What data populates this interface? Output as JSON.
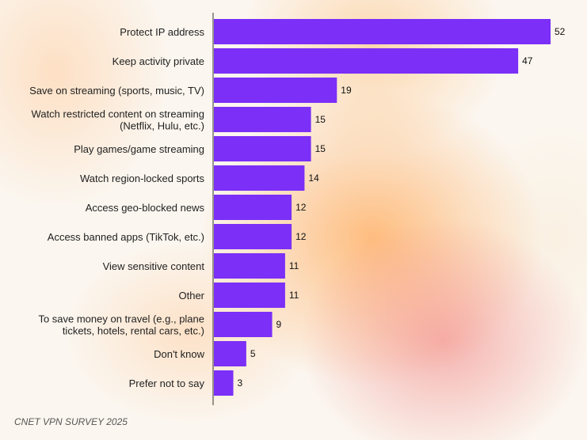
{
  "source": "CNET VPN SURVEY 2025",
  "colors": {
    "bar": "#7b2ff7",
    "axis": "#333333"
  },
  "chart_data": {
    "type": "bar",
    "orientation": "horizontal",
    "categories": [
      [
        "Protect IP address"
      ],
      [
        "Keep activity private"
      ],
      [
        "Save on streaming (sports, music, TV)"
      ],
      [
        "Watch restricted content on streaming",
        "(Netflix, Hulu, etc.)"
      ],
      [
        "Play games/game streaming"
      ],
      [
        "Watch region-locked sports"
      ],
      [
        "Access geo-blocked news"
      ],
      [
        "Access banned apps (TikTok, etc.)"
      ],
      [
        "View sensitive content"
      ],
      [
        "Other"
      ],
      [
        "To save money on travel (e.g., plane",
        "tickets, hotels, rental cars, etc.)"
      ],
      [
        "Don't know"
      ],
      [
        "Prefer not to say"
      ]
    ],
    "values": [
      52,
      47,
      19,
      15,
      15,
      14,
      12,
      12,
      11,
      11,
      9,
      5,
      3
    ],
    "xlim": [
      0,
      52
    ],
    "grid": false,
    "legend": "none"
  }
}
